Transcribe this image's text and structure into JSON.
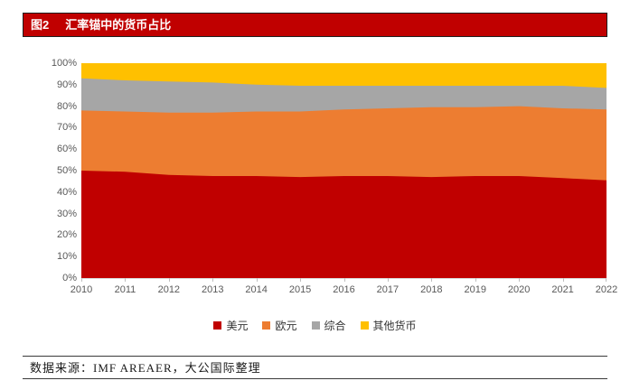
{
  "figure": {
    "label": "图2",
    "title": "汇率锚中的货币占比",
    "header_bar_color": "#c00000",
    "header_text_color": "#ffffff"
  },
  "source_note": "数据来源：IMF AREAER，大公国际整理",
  "axis_text_color": "#595959",
  "chart_data": {
    "type": "area",
    "stacked": true,
    "title": "汇率锚中的货币占比",
    "x": [
      "2010",
      "2011",
      "2012",
      "2013",
      "2014",
      "2015",
      "2016",
      "2017",
      "2018",
      "2019",
      "2020",
      "2021",
      "2022"
    ],
    "series": [
      {
        "name": "美元",
        "color": "#c00000",
        "values": [
          50,
          49.5,
          48,
          47.5,
          47.5,
          47,
          47.5,
          47.5,
          47,
          47.5,
          47.5,
          46.5,
          45.5
        ]
      },
      {
        "name": "欧元",
        "color": "#ed7d31",
        "values": [
          28,
          28,
          29,
          29.5,
          30,
          30.5,
          31,
          31.5,
          32.5,
          32,
          32.5,
          32.5,
          33
        ]
      },
      {
        "name": "综合",
        "color": "#a6a6a6",
        "values": [
          15,
          14.5,
          14.5,
          14,
          12.5,
          12,
          11,
          10.5,
          10,
          10,
          9.5,
          10.5,
          10
        ]
      },
      {
        "name": "其他货币",
        "color": "#ffc000",
        "values": [
          7,
          8,
          8.5,
          9,
          10,
          10.5,
          10.5,
          10.5,
          10.5,
          10.5,
          10.5,
          10.5,
          11.5
        ]
      }
    ],
    "xlabel": "",
    "ylabel": "",
    "ylim": [
      0,
      100
    ],
    "ytick_step": 10,
    "ytick_suffix": "%",
    "grid": false,
    "legend_position": "bottom"
  }
}
